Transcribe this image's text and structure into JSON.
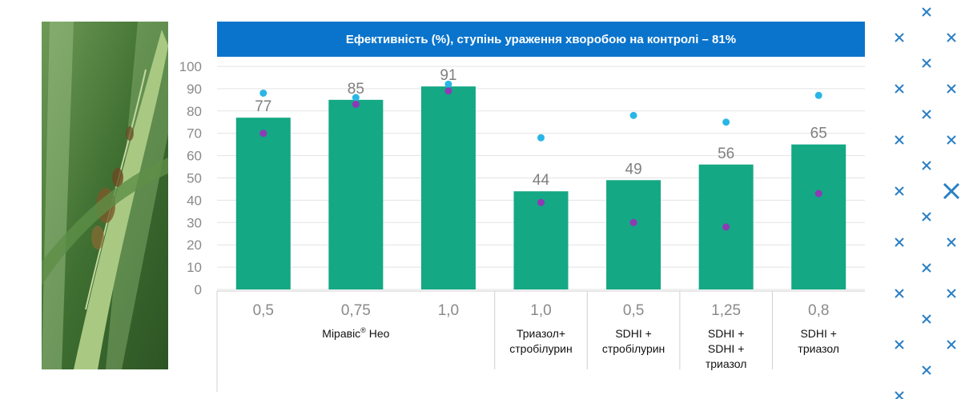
{
  "chart_data": {
    "type": "bar",
    "title": "Ефективність (%), ступінь ураження хворобою на контролі – 81%",
    "ylim": [
      0,
      100
    ],
    "yticks": [
      0,
      10,
      20,
      30,
      40,
      50,
      60,
      70,
      80,
      90,
      100
    ],
    "grid": true,
    "rates": [
      "0,5",
      "0,75",
      "1,0",
      "1,0",
      "0,5",
      "1,25",
      "0,8"
    ],
    "values": [
      77,
      85,
      91,
      44,
      49,
      56,
      65
    ],
    "value_labels": [
      "77",
      "85",
      "91",
      "44",
      "49",
      "56",
      "65"
    ],
    "dots_cyan": [
      88,
      86,
      92,
      68,
      78,
      75,
      87
    ],
    "dots_purple": [
      70,
      83,
      89,
      39,
      30,
      28,
      43
    ],
    "groups": [
      {
        "label": "Міравіс® Нео",
        "span": [
          0,
          2
        ]
      },
      {
        "label": "Триазол+ стробілурин",
        "span": [
          3,
          3
        ]
      },
      {
        "label": "SDHI + стробілурин",
        "span": [
          4,
          4
        ]
      },
      {
        "label": "SDHI + SDHI + триазол",
        "span": [
          5,
          5
        ]
      },
      {
        "label": "SDHI + триазол",
        "span": [
          6,
          6
        ]
      }
    ],
    "colors": {
      "bar": "#14a884",
      "cyan": "#29b6e6",
      "purple": "#8e3ab5",
      "grid": "#e3e3e3",
      "tick": "#8a8a8a"
    }
  },
  "deco_icon": "x-star-icon"
}
